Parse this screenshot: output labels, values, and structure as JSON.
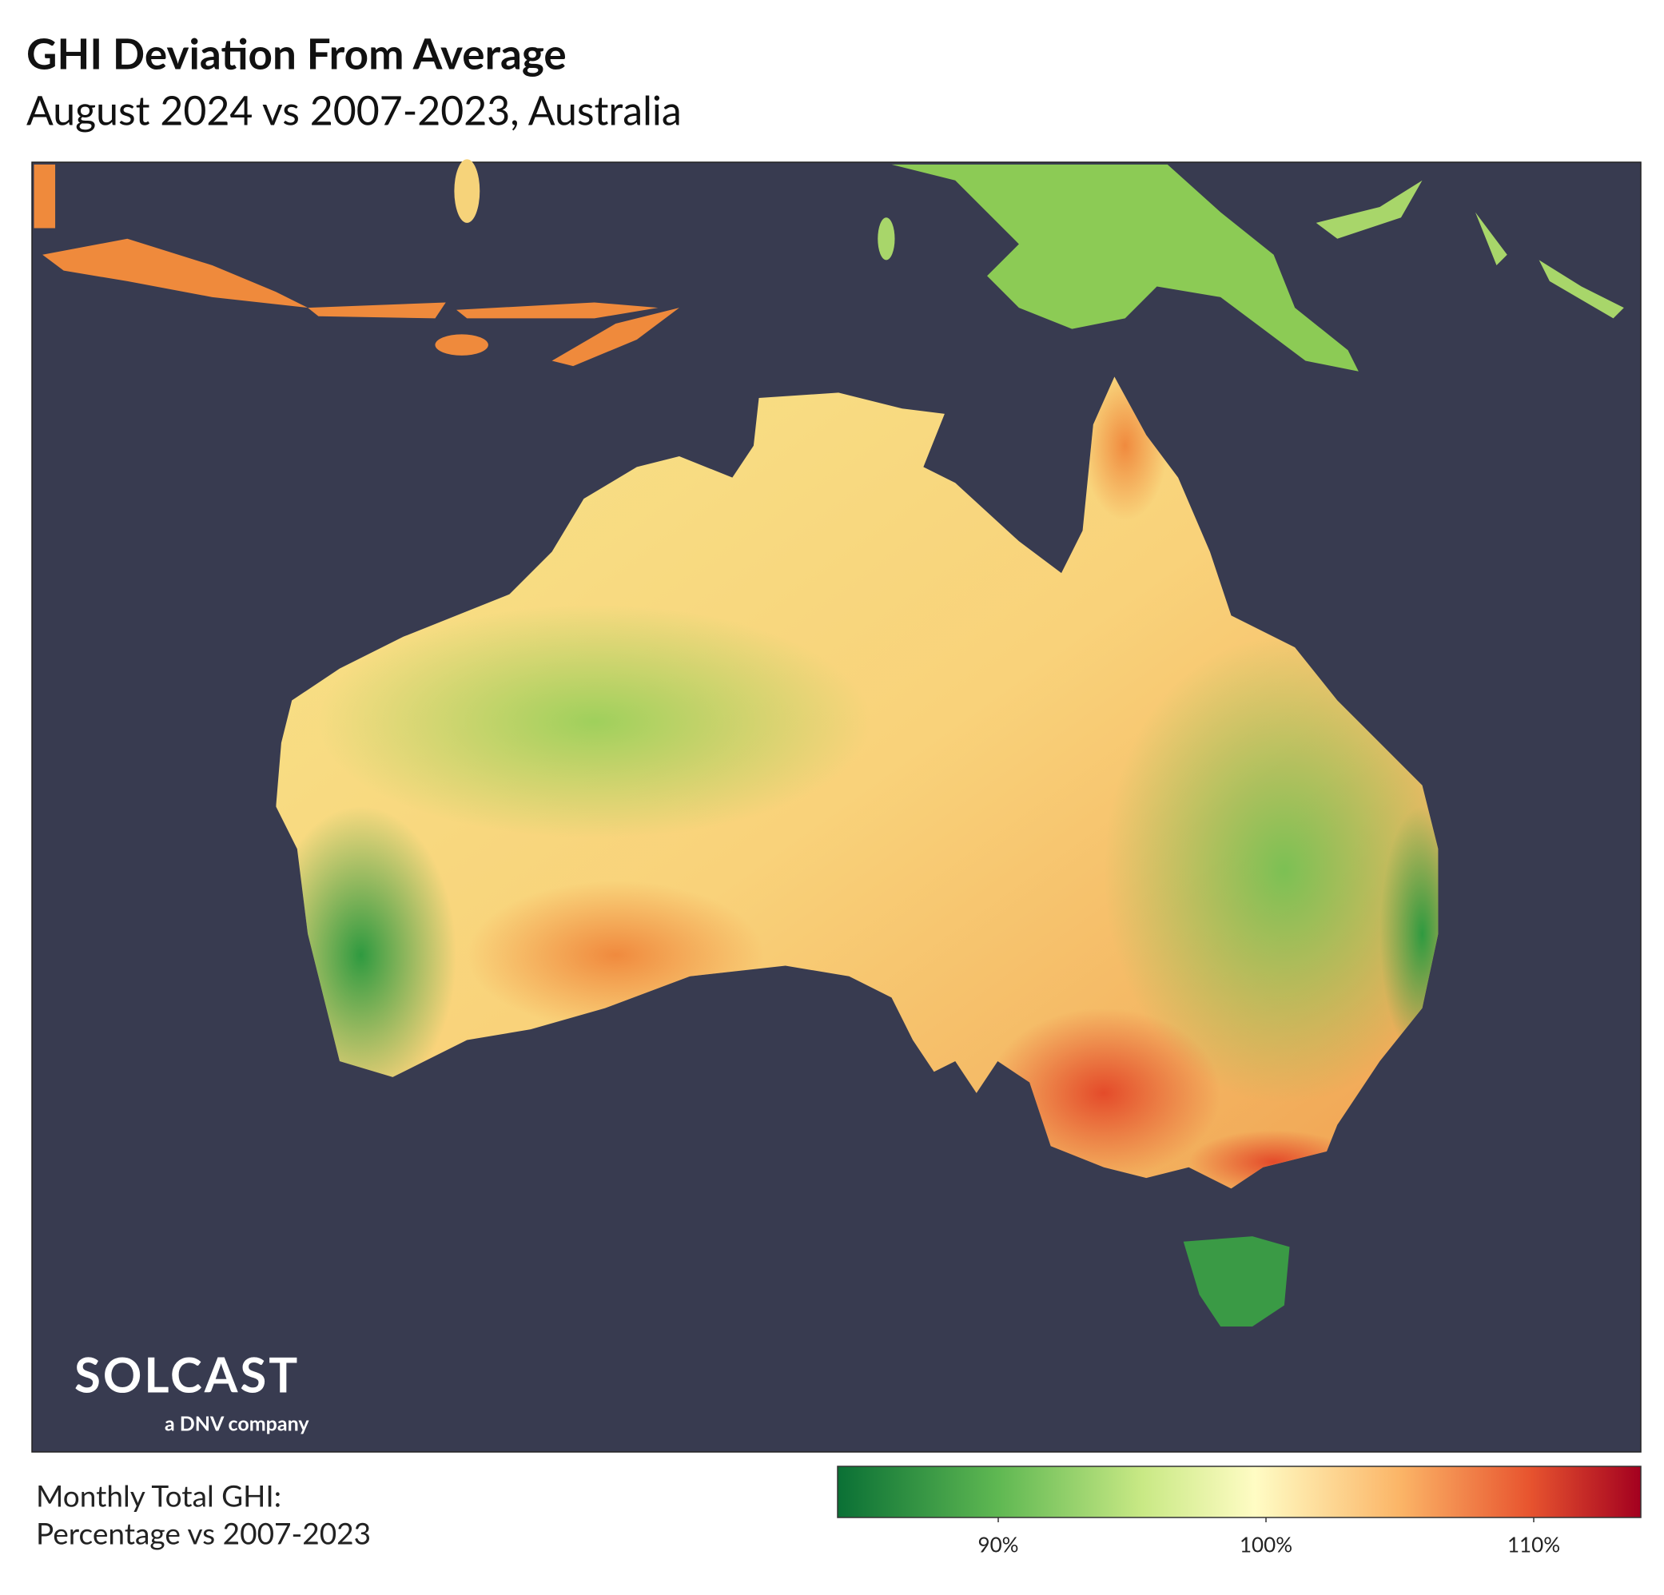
{
  "header": {
    "title": "GHI Deviation From Average",
    "subtitle": "August 2024 vs 2007-2023, Australia"
  },
  "logo": {
    "name": "SOLCAST",
    "tagline": "a DNV company"
  },
  "legend": {
    "label": [
      "Monthly Total GHI:",
      "Percentage vs 2007-2023"
    ],
    "colorbar": {
      "range": [
        84,
        114
      ],
      "ticks": [
        {
          "value": 90,
          "label": "90%"
        },
        {
          "value": 100,
          "label": "100%"
        },
        {
          "value": 110,
          "label": "110%"
        }
      ]
    }
  }
}
